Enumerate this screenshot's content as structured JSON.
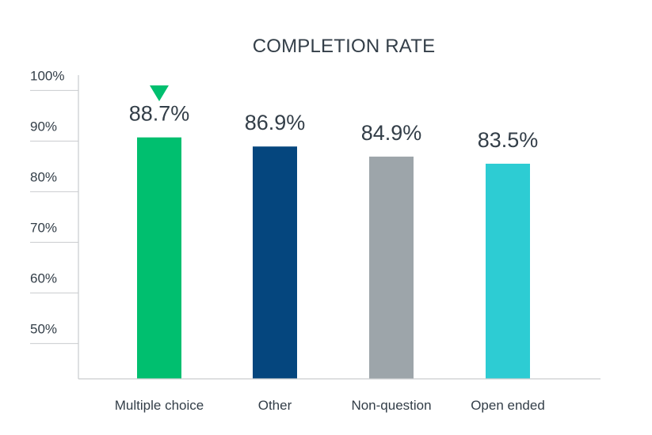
{
  "chart_data": {
    "type": "bar",
    "title": "COMPLETION RATE",
    "xlabel": "",
    "ylabel": "",
    "categories": [
      "Multiple choice",
      "Other",
      "Non-question",
      "Open ended"
    ],
    "values": [
      88.7,
      86.9,
      84.9,
      83.5
    ],
    "data_labels": [
      "88.7%",
      "86.9%",
      "84.9%",
      "83.5%"
    ],
    "colors": [
      "#00bf6f",
      "#05467e",
      "#9da5aa",
      "#2dccd3"
    ],
    "yticks": [
      50,
      60,
      70,
      80,
      90,
      100
    ],
    "ytick_labels": [
      "50%",
      "60%",
      "70%",
      "80%",
      "90%",
      "100%"
    ],
    "ylim": [
      41,
      101
    ],
    "grid": true,
    "legend": "none",
    "highlight": {
      "category": "Multiple choice",
      "icon": "triangle-down-marker-icon",
      "color": "#00bf6f"
    }
  }
}
